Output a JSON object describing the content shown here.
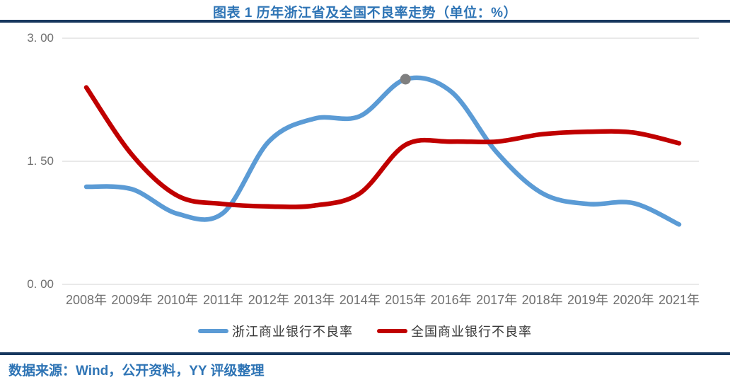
{
  "title": "图表 1 历年浙江省及全国不良率走势（单位：%）",
  "footer": {
    "source_label": "数据来源：Wind，公开资料，YY 评级整理"
  },
  "colors": {
    "title_blue": "#2E74B5",
    "rule_navy": "#17375E",
    "grid_gray": "#DCDCDC",
    "axis_text_gray": "#6F6F6F",
    "series_blue": "#5B9BD5",
    "series_red": "#C00000",
    "marker_gray": "#7F7F7F"
  },
  "chart_data": {
    "type": "line",
    "title": "图表 1 历年浙江省及全国不良率走势（单位：%）",
    "unit": "%",
    "categories": [
      "2008年",
      "2009年",
      "2010年",
      "2011年",
      "2012年",
      "2013年",
      "2014年",
      "2015年",
      "2016年",
      "2017年",
      "2018年",
      "2019年",
      "2020年",
      "2021年"
    ],
    "series": [
      {
        "name": "浙江商业银行不良率",
        "color": "#5B9BD5",
        "values": [
          1.19,
          1.16,
          0.86,
          0.87,
          1.74,
          2.02,
          2.05,
          2.5,
          2.35,
          1.61,
          1.11,
          0.98,
          0.99,
          0.73
        ],
        "marker": {
          "index": 7,
          "color": "#7F7F7F",
          "radius": 7.5
        }
      },
      {
        "name": "全国商业银行不良率",
        "color": "#C00000",
        "values": [
          2.4,
          1.58,
          1.08,
          0.98,
          0.95,
          0.96,
          1.11,
          1.7,
          1.74,
          1.74,
          1.83,
          1.86,
          1.85,
          1.72
        ]
      }
    ],
    "y_axis": {
      "ticks": [
        {
          "label": "3. 00",
          "value": 3.0
        },
        {
          "label": "1. 50",
          "value": 1.5
        },
        {
          "label": "0. 00",
          "value": 0.0
        }
      ],
      "ylim": [
        0,
        3
      ]
    },
    "grid": true,
    "smooth": true,
    "legend_position": "bottom"
  }
}
